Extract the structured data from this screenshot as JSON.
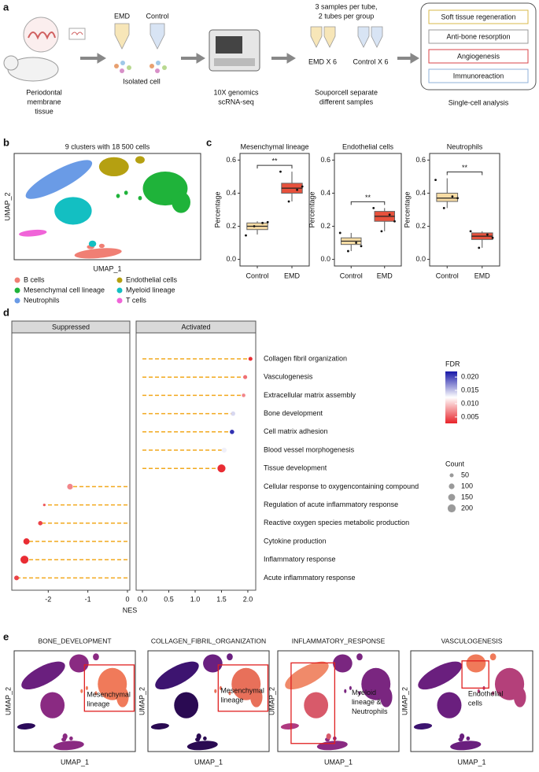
{
  "panel_labels": [
    "a",
    "b",
    "c",
    "d",
    "e"
  ],
  "panel_a": {
    "tissue": [
      "Periodontal",
      "membrane",
      "tissue"
    ],
    "tube_labels": [
      "EMD",
      "Control"
    ],
    "isolated": "Isolated cell",
    "sequencing": [
      "10X genomics",
      "scRNA-seq"
    ],
    "pooling": [
      "3 samples per tube,",
      "2 tubes per group"
    ],
    "pool_labels": [
      "EMD X 6",
      "Control X 6"
    ],
    "demux": [
      "Souporcell separate",
      "different samples"
    ],
    "analyses": [
      {
        "label": "Soft tissue regeneration",
        "color": "#d9b84a"
      },
      {
        "label": "Anti-bone resorption",
        "color": "#999999"
      },
      {
        "label": "Angiogenesis",
        "color": "#d9444a"
      },
      {
        "label": "Immunoreaction",
        "color": "#8fb0d8"
      }
    ],
    "analysis_title": "Single-cell analysis"
  },
  "panel_b": {
    "title": "9 clusters with 18 500 cells",
    "x_label": "UMAP_1",
    "y_label": "UMAP_2",
    "clusters": [
      {
        "name": "B cells",
        "color": "#f07f74"
      },
      {
        "name": "Mesenchymal cell lineage",
        "color": "#1fb33a"
      },
      {
        "name": "Neutrophils",
        "color": "#6a9be6"
      },
      {
        "name": "Endothelial cells",
        "color": "#b5a011"
      },
      {
        "name": "Myeloid lineage",
        "color": "#13bfc2"
      },
      {
        "name": "T cells",
        "color": "#f064d8"
      }
    ]
  },
  "chart_data": [
    {
      "type": "box",
      "title": "Mesenchymal lineage",
      "y_label": "Percentage",
      "categories": [
        "Control",
        "EMD"
      ],
      "colors": [
        "#f8dca4",
        "#e8513c"
      ],
      "ylim": [
        -0.04,
        0.64
      ],
      "yticks": [
        {
          "value": 0,
          "label": "0.0"
        },
        0.2,
        0.4,
        0.6
      ],
      "significance": "**",
      "boxes": [
        {
          "low": 0.15,
          "q1": 0.18,
          "median": 0.2,
          "q3": 0.22,
          "high": 0.23,
          "points": [
            0.145,
            0.22,
            0.225,
            0.2
          ]
        },
        {
          "low": 0.35,
          "q1": 0.4,
          "median": 0.43,
          "q3": 0.46,
          "high": 0.53,
          "points": [
            0.53,
            0.42,
            0.44,
            0.35
          ]
        }
      ]
    },
    {
      "type": "box",
      "title": "Endothelial cells",
      "y_label": "Percentage",
      "categories": [
        "Control",
        "EMD"
      ],
      "colors": [
        "#f8dca4",
        "#e8513c"
      ],
      "ylim": [
        -0.04,
        0.64
      ],
      "yticks": [
        {
          "value": 0,
          "label": "0.0"
        },
        0.2,
        0.4,
        0.6
      ],
      "significance": "**",
      "boxes": [
        {
          "low": 0.05,
          "q1": 0.09,
          "median": 0.11,
          "q3": 0.13,
          "high": 0.16,
          "points": [
            0.16,
            0.1,
            0.08,
            0.05
          ]
        },
        {
          "low": 0.17,
          "q1": 0.23,
          "median": 0.26,
          "q3": 0.29,
          "high": 0.31,
          "points": [
            0.31,
            0.27,
            0.23,
            0.17
          ]
        }
      ]
    },
    {
      "type": "box",
      "title": "Neutrophils",
      "y_label": "Percentage",
      "categories": [
        "Control",
        "EMD"
      ],
      "colors": [
        "#f8dca4",
        "#e8513c"
      ],
      "ylim": [
        -0.04,
        0.64
      ],
      "yticks": [
        {
          "value": 0,
          "label": "0.0"
        },
        0.2,
        0.4,
        0.6
      ],
      "significance": "**",
      "boxes": [
        {
          "low": 0.31,
          "q1": 0.35,
          "median": 0.37,
          "q3": 0.4,
          "high": 0.49,
          "points": [
            0.48,
            0.38,
            0.37,
            0.31
          ]
        },
        {
          "low": 0.07,
          "q1": 0.12,
          "median": 0.14,
          "q3": 0.16,
          "high": 0.17,
          "points": [
            0.17,
            0.15,
            0.13,
            0.07
          ]
        }
      ]
    },
    {
      "type": "lollipop",
      "x_label": "NES",
      "line_color": "#f2a81d",
      "facets": [
        {
          "title": "Suppressed",
          "xlim": [
            -2.92,
            0.06
          ],
          "xticks": [
            -2,
            -1,
            0
          ]
        },
        {
          "title": "Activated",
          "xlim": [
            -0.12,
            2.15
          ],
          "xticks": [
            {
              "value": 0,
              "label": "0.0"
            },
            0.5,
            {
              "value": 1,
              "label": "1.0"
            },
            1.5,
            {
              "value": 2,
              "label": "2.0"
            }
          ]
        }
      ],
      "terms": [
        {
          "label": "Collagen fibril organization",
          "label_color": "#c9a010",
          "nes": 2.05,
          "fdr": 0.003,
          "count": 50
        },
        {
          "label": "Vasculogenesis",
          "label_color": "#e02424",
          "nes": 1.95,
          "fdr": 0.006,
          "count": 50
        },
        {
          "label": "Extracellular matrix assembly",
          "label_color": "#c9a010",
          "nes": 1.92,
          "fdr": 0.007,
          "count": 40
        },
        {
          "label": "Bone development",
          "label_color": "#111111",
          "nes": 1.72,
          "fdr": 0.014,
          "count": 60
        },
        {
          "label": "Cell matrix adhesion",
          "label_color": "#c9a010",
          "nes": 1.7,
          "fdr": 0.021,
          "count": 60
        },
        {
          "label": "Blood vessel morphogenesis",
          "label_color": "#c00000",
          "nes": 1.55,
          "fdr": 0.013,
          "count": 80
        },
        {
          "label": "Tissue development",
          "label_color": "#c9a010",
          "nes": 1.5,
          "fdr": 0.003,
          "count": 200
        },
        {
          "label": "Cellular response to oxygencontaining compound",
          "label_color": "#4a7bc8",
          "nes": -1.45,
          "fdr": 0.007,
          "count": 100
        },
        {
          "label": "Regulation of acute inflammatory response",
          "label_color": "#4a7bc8",
          "nes": -2.1,
          "fdr": 0.005,
          "count": 20
        },
        {
          "label": "Reactive oxygen species metabolic production",
          "label_color": "#4a7bc8",
          "nes": -2.2,
          "fdr": 0.004,
          "count": 60
        },
        {
          "label": "Cytokine production",
          "label_color": "#4a7bc8",
          "nes": -2.55,
          "fdr": 0.003,
          "count": 120
        },
        {
          "label": "Inflammatory response",
          "label_color": "#4a7bc8",
          "nes": -2.6,
          "fdr": 0.003,
          "count": 200
        },
        {
          "label": "Acute inflammatory response",
          "label_color": "#4a7bc8",
          "nes": -2.8,
          "fdr": 0.004,
          "count": 70
        }
      ],
      "color_title": "FDR",
      "fdr_lim": [
        0.0026,
        0.0221
      ],
      "fdr_ticks": [
        {
          "value": 0.02,
          "label": "0.020"
        },
        0.015,
        {
          "value": 0.01,
          "label": "0.010"
        },
        0.005
      ],
      "fdr_colors": [
        "#e8232a",
        "#ffffff",
        "#1818a8"
      ],
      "size_title": "Count",
      "size_ticks": [
        50,
        100,
        150,
        200
      ],
      "size_color": "#9a9a9a"
    }
  ],
  "panel_e": {
    "x_label": "UMAP_1",
    "y_label": "UMAP_2",
    "plots": [
      {
        "title": "BONE_DEVELOPMENT",
        "annotation": [
          "Mesenchymal",
          "lineage"
        ],
        "cluster_colors": [
          "#8a2a82",
          "#f07a5a",
          "#6a1f7e",
          "#8a2a82",
          "#8a2a82",
          "#2c0b5a"
        ]
      },
      {
        "title": "COLLAGEN_FIBRIL_ORGANIZATION",
        "annotation": [
          "Mesenchymal",
          "lineage"
        ],
        "cluster_colors": [
          "#2a0a52",
          "#e8705a",
          "#3d1470",
          "#6a2080",
          "#2a0a52",
          "#2a0a52"
        ]
      },
      {
        "title": "INFLAMMATORY_RESPONSE",
        "annotation": [
          "Myeloid",
          "lineage &",
          "Neutrophils"
        ],
        "cluster_colors": [
          "#8a2a82",
          "#7a2680",
          "#f08a6a",
          "#7a2680",
          "#d85a6a",
          "#b03a80"
        ]
      },
      {
        "title": "VASCULOGENESIS",
        "annotation": [
          "Endothelial",
          "cells"
        ],
        "cluster_colors": [
          "#6a1f7e",
          "#b4407a",
          "#6a1f7e",
          "#f07a5a",
          "#6a1f7e",
          "#3d1470"
        ]
      }
    ]
  }
}
